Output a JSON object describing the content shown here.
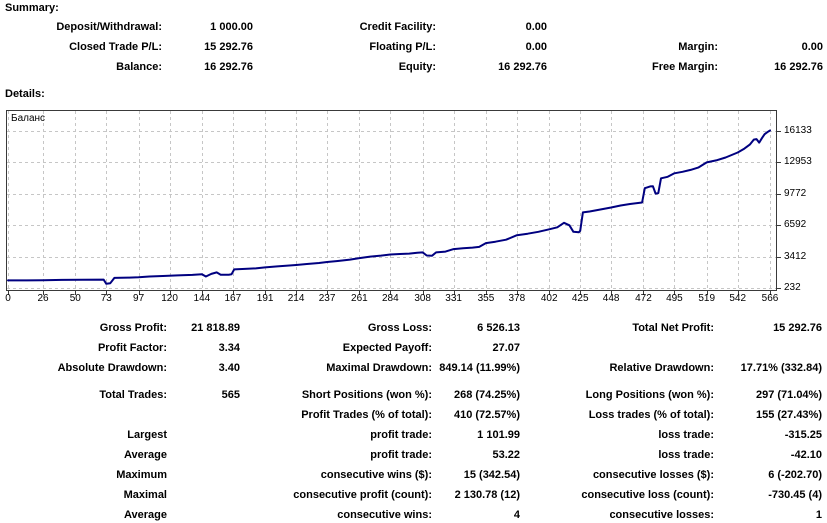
{
  "summary": {
    "heading": "Summary:",
    "rows": [
      [
        "Deposit/Withdrawal:",
        "1 000.00",
        "Credit Facility:",
        "0.00",
        "",
        ""
      ],
      [
        "Closed Trade P/L:",
        "15 292.76",
        "Floating P/L:",
        "0.00",
        "Margin:",
        "0.00"
      ],
      [
        "Balance:",
        "16 292.76",
        "Equity:",
        "16 292.76",
        "Free Margin:",
        "16 292.76"
      ]
    ]
  },
  "details": {
    "heading": "Details:"
  },
  "chart_data": {
    "type": "line",
    "title": "Баланс",
    "legend_position": "top-left-inside",
    "grid": true,
    "grid_style": "dashed",
    "line_color": "#000080",
    "frame_color": "#3a3a3a",
    "grid_color": "#c6c6c6",
    "xlabel": "",
    "ylabel": "",
    "x_range": [
      0,
      566
    ],
    "y_range": [
      232,
      16133
    ],
    "x_ticks": [
      0,
      26,
      50,
      73,
      97,
      120,
      144,
      167,
      191,
      214,
      237,
      261,
      284,
      308,
      331,
      355,
      378,
      402,
      425,
      448,
      472,
      495,
      519,
      542,
      566
    ],
    "y_ticks": [
      232,
      3412,
      6592,
      9772,
      12953,
      16133
    ],
    "series": [
      {
        "name": "Баланс",
        "points": [
          [
            0,
            1000
          ],
          [
            14,
            1000
          ],
          [
            26,
            1010
          ],
          [
            40,
            1045
          ],
          [
            55,
            1065
          ],
          [
            71,
            1085
          ],
          [
            73,
            660
          ],
          [
            76,
            720
          ],
          [
            79,
            1255
          ],
          [
            90,
            1285
          ],
          [
            97,
            1310
          ],
          [
            105,
            1390
          ],
          [
            115,
            1440
          ],
          [
            126,
            1505
          ],
          [
            137,
            1555
          ],
          [
            144,
            1625
          ],
          [
            147,
            1390
          ],
          [
            151,
            1660
          ],
          [
            155,
            1810
          ],
          [
            158,
            1570
          ],
          [
            164,
            1575
          ],
          [
            166,
            1620
          ],
          [
            168,
            2110
          ],
          [
            176,
            2165
          ],
          [
            184,
            2215
          ],
          [
            191,
            2310
          ],
          [
            200,
            2410
          ],
          [
            209,
            2500
          ],
          [
            214,
            2555
          ],
          [
            222,
            2655
          ],
          [
            231,
            2760
          ],
          [
            237,
            2860
          ],
          [
            245,
            2960
          ],
          [
            254,
            3100
          ],
          [
            261,
            3255
          ],
          [
            269,
            3400
          ],
          [
            277,
            3505
          ],
          [
            284,
            3610
          ],
          [
            291,
            3660
          ],
          [
            298,
            3710
          ],
          [
            304,
            3790
          ],
          [
            308,
            3825
          ],
          [
            311,
            3510
          ],
          [
            315,
            3490
          ],
          [
            318,
            3825
          ],
          [
            325,
            3905
          ],
          [
            331,
            4160
          ],
          [
            338,
            4255
          ],
          [
            345,
            4310
          ],
          [
            350,
            4385
          ],
          [
            355,
            4760
          ],
          [
            362,
            4910
          ],
          [
            370,
            5110
          ],
          [
            378,
            5560
          ],
          [
            386,
            5710
          ],
          [
            394,
            5910
          ],
          [
            402,
            6160
          ],
          [
            408,
            6360
          ],
          [
            413,
            6810
          ],
          [
            417,
            6560
          ],
          [
            420,
            5910
          ],
          [
            424,
            5860
          ],
          [
            425,
            6010
          ],
          [
            427,
            7860
          ],
          [
            432,
            7960
          ],
          [
            440,
            8160
          ],
          [
            448,
            8360
          ],
          [
            455,
            8560
          ],
          [
            462,
            8710
          ],
          [
            468,
            8810
          ],
          [
            471,
            8860
          ],
          [
            473,
            10310
          ],
          [
            477,
            10490
          ],
          [
            479,
            10510
          ],
          [
            481,
            9760
          ],
          [
            483,
            9810
          ],
          [
            485,
            11310
          ],
          [
            490,
            11460
          ],
          [
            495,
            11810
          ],
          [
            501,
            11960
          ],
          [
            507,
            12160
          ],
          [
            513,
            12410
          ],
          [
            519,
            12910
          ],
          [
            526,
            13110
          ],
          [
            533,
            13410
          ],
          [
            542,
            13910
          ],
          [
            547,
            14310
          ],
          [
            551,
            14710
          ],
          [
            554,
            15210
          ],
          [
            556,
            15260
          ],
          [
            558,
            14910
          ],
          [
            560,
            15360
          ],
          [
            562,
            15760
          ],
          [
            564,
            15960
          ],
          [
            566,
            16133
          ]
        ]
      }
    ]
  },
  "stats": {
    "top_rows": [
      [
        "Gross Profit:",
        "21 818.89",
        "Gross Loss:",
        "6 526.13",
        "Total Net Profit:",
        "15 292.76"
      ],
      [
        "Profit Factor:",
        "3.34",
        "Expected Payoff:",
        "27.07",
        "",
        ""
      ],
      [
        "Absolute Drawdown:",
        "3.40",
        "Maximal Drawdown:",
        "849.14 (11.99%)",
        "Relative Drawdown:",
        "17.71% (332.84)"
      ]
    ],
    "bottom_rows": [
      [
        "Total Trades:",
        "565",
        "Short Positions (won %):",
        "268 (74.25%)",
        "Long Positions (won %):",
        "297 (71.04%)"
      ],
      [
        "",
        "",
        "Profit Trades (% of total):",
        "410 (72.57%)",
        "Loss trades (% of total):",
        "155 (27.43%)"
      ],
      [
        "Largest",
        "",
        "profit trade:",
        "1 101.99",
        "loss trade:",
        "-315.25"
      ],
      [
        "Average",
        "",
        "profit trade:",
        "53.22",
        "loss trade:",
        "-42.10"
      ],
      [
        "Maximum",
        "",
        "consecutive wins ($):",
        "15 (342.54)",
        "consecutive losses ($):",
        "6 (-202.70)"
      ],
      [
        "Maximal",
        "",
        "consecutive profit (count):",
        "2 130.78 (12)",
        "consecutive loss (count):",
        "-730.45 (4)"
      ],
      [
        "Average",
        "",
        "consecutive wins:",
        "4",
        "consecutive losses:",
        "1"
      ]
    ]
  }
}
